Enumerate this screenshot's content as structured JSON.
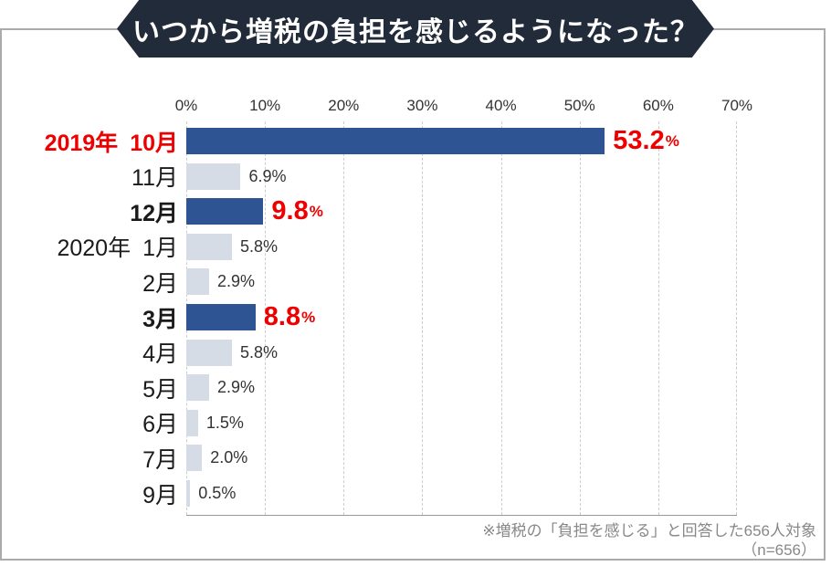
{
  "banner": {
    "title": "いつから増税の負担を感じるようになった？"
  },
  "footnote": {
    "line1": "※増税の「負担を感じる」と回答した656人対象",
    "line2": "（n=656）"
  },
  "colors": {
    "banner_bg": "#222b3a",
    "banner_text": "#ffffff",
    "bar_highlight": "#2f5494",
    "bar_normal": "#d5dce5",
    "highlight_red": "#ee0000",
    "value_text": "#333333",
    "tick_text": "#333333",
    "gridline": "#cccccc",
    "axis_line": "#999999",
    "frame_border": "#ababab",
    "footnote_text": "#888888"
  },
  "chart_data": {
    "type": "bar",
    "orientation": "horizontal",
    "title": "いつから増税の負担を感じるようになった？",
    "xlabel": "",
    "ylabel": "",
    "x_range_percent": [
      0,
      70
    ],
    "x_tick_labels": [
      "0%",
      "10%",
      "20%",
      "30%",
      "40%",
      "50%",
      "60%",
      "70%"
    ],
    "grid": "vertical-dashed",
    "legend": "none",
    "n": 656,
    "categories": [
      "2019年 10月",
      "11月",
      "12月",
      "2020年 1月",
      "2月",
      "3月",
      "4月",
      "5月",
      "6月",
      "7月",
      "9月"
    ],
    "values": [
      53.2,
      6.9,
      9.8,
      5.8,
      2.9,
      8.8,
      5.8,
      2.9,
      1.5,
      2.0,
      0.5
    ],
    "rows": [
      {
        "year": "2019年",
        "month": "10月",
        "value": 53.2,
        "value_label": "53.2%",
        "highlight": true
      },
      {
        "year": "",
        "month": "11月",
        "value": 6.9,
        "value_label": "6.9%",
        "highlight": false
      },
      {
        "year": "",
        "month": "12月",
        "value": 9.8,
        "value_label": "9.8%",
        "highlight": true
      },
      {
        "year": "2020年",
        "month": "1月",
        "value": 5.8,
        "value_label": "5.8%",
        "highlight": false
      },
      {
        "year": "",
        "month": "2月",
        "value": 2.9,
        "value_label": "2.9%",
        "highlight": false
      },
      {
        "year": "",
        "month": "3月",
        "value": 8.8,
        "value_label": "8.8%",
        "highlight": true
      },
      {
        "year": "",
        "month": "4月",
        "value": 5.8,
        "value_label": "5.8%",
        "highlight": false
      },
      {
        "year": "",
        "month": "5月",
        "value": 2.9,
        "value_label": "2.9%",
        "highlight": false
      },
      {
        "year": "",
        "month": "6月",
        "value": 1.5,
        "value_label": "1.5%",
        "highlight": false
      },
      {
        "year": "",
        "month": "7月",
        "value": 2.0,
        "value_label": "2.0%",
        "highlight": false
      },
      {
        "year": "",
        "month": "9月",
        "value": 0.5,
        "value_label": "0.5%",
        "highlight": false
      }
    ]
  }
}
